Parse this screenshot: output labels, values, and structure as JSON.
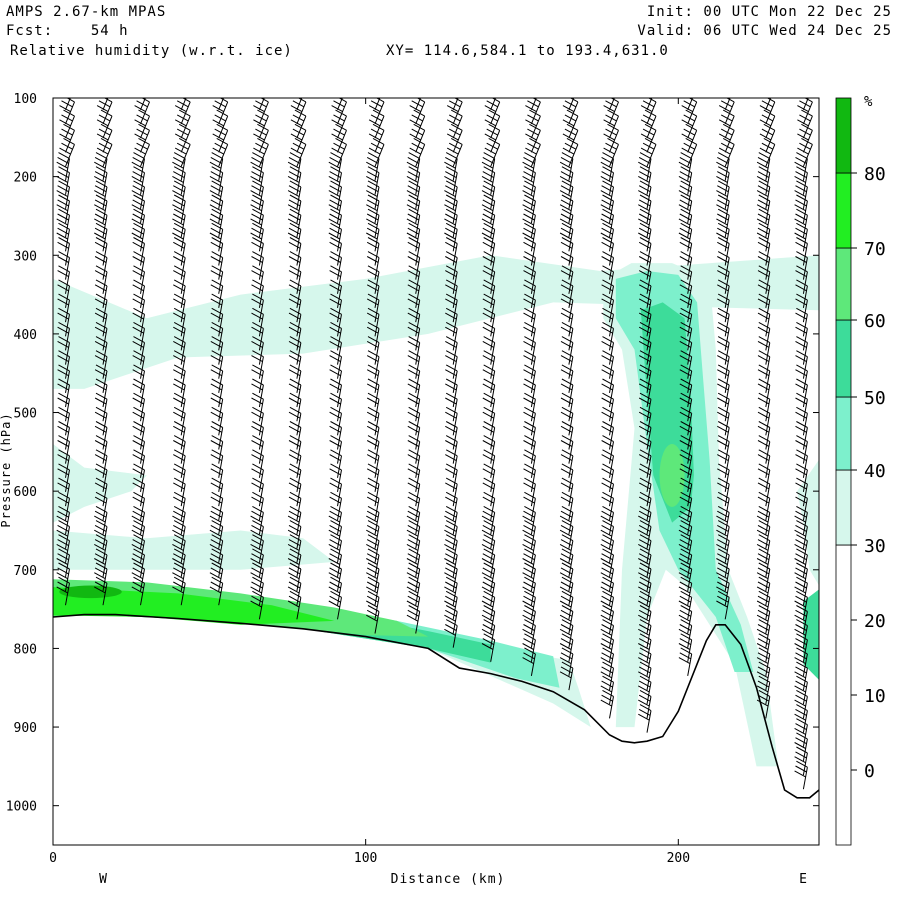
{
  "header": {
    "model": "AMPS 2.67-km MPAS",
    "fcst": "Fcst:    54 h",
    "field": "Relative humidity (w.r.t. ice)",
    "xy": "XY= 114.6,584.1 to 193.4,631.0",
    "init": "Init: 00 UTC Mon 22 Dec 25",
    "valid": "Valid: 06 UTC Wed 24 Dec 25"
  },
  "chart_data": {
    "type": "cross-section",
    "title": "Relative humidity (w.r.t. ice)",
    "xlabel": "Distance (km)",
    "ylabel": "Pressure (hPa)",
    "xlim": [
      0,
      245
    ],
    "ylim": [
      1050,
      100
    ],
    "x_ticks": [
      "0",
      "100",
      "200"
    ],
    "y_ticks": [
      "100",
      "200",
      "300",
      "400",
      "500",
      "600",
      "700",
      "800",
      "900",
      "1000"
    ],
    "left_end_label": "W",
    "right_end_label": "E",
    "colorbar": {
      "unit": "%",
      "labels": [
        "0",
        "10",
        "20",
        "30",
        "40",
        "50",
        "60",
        "70",
        "80"
      ],
      "bins": [
        {
          "range": "<30",
          "color": "#ffffff"
        },
        {
          "range": "30-40",
          "color": "#d6f7ec"
        },
        {
          "range": "40-50",
          "color": "#7df0cc"
        },
        {
          "range": "50-60",
          "color": "#3ddc9a"
        },
        {
          "range": "60-70",
          "color": "#5ee87a"
        },
        {
          "range": "70-80",
          "color": "#22ee22"
        },
        {
          "range": ">80",
          "color": "#11b811"
        }
      ]
    },
    "terrain_pressure": {
      "x": [
        0,
        10,
        20,
        40,
        60,
        80,
        100,
        120,
        130,
        140,
        150,
        160,
        170,
        178,
        182,
        186,
        190,
        195,
        200,
        205,
        209,
        212,
        215,
        220,
        225,
        230,
        234,
        238,
        242,
        245
      ],
      "p": [
        760,
        757,
        757,
        762,
        768,
        775,
        785,
        800,
        825,
        832,
        842,
        855,
        878,
        910,
        918,
        920,
        918,
        912,
        880,
        830,
        790,
        770,
        770,
        795,
        850,
        925,
        980,
        990,
        990,
        980
      ]
    },
    "wind_barb_columns_km": [
      4,
      16,
      28,
      41,
      53,
      66,
      78,
      91,
      103,
      116,
      128,
      140,
      153,
      165,
      178,
      190,
      203,
      215,
      228,
      240
    ]
  }
}
